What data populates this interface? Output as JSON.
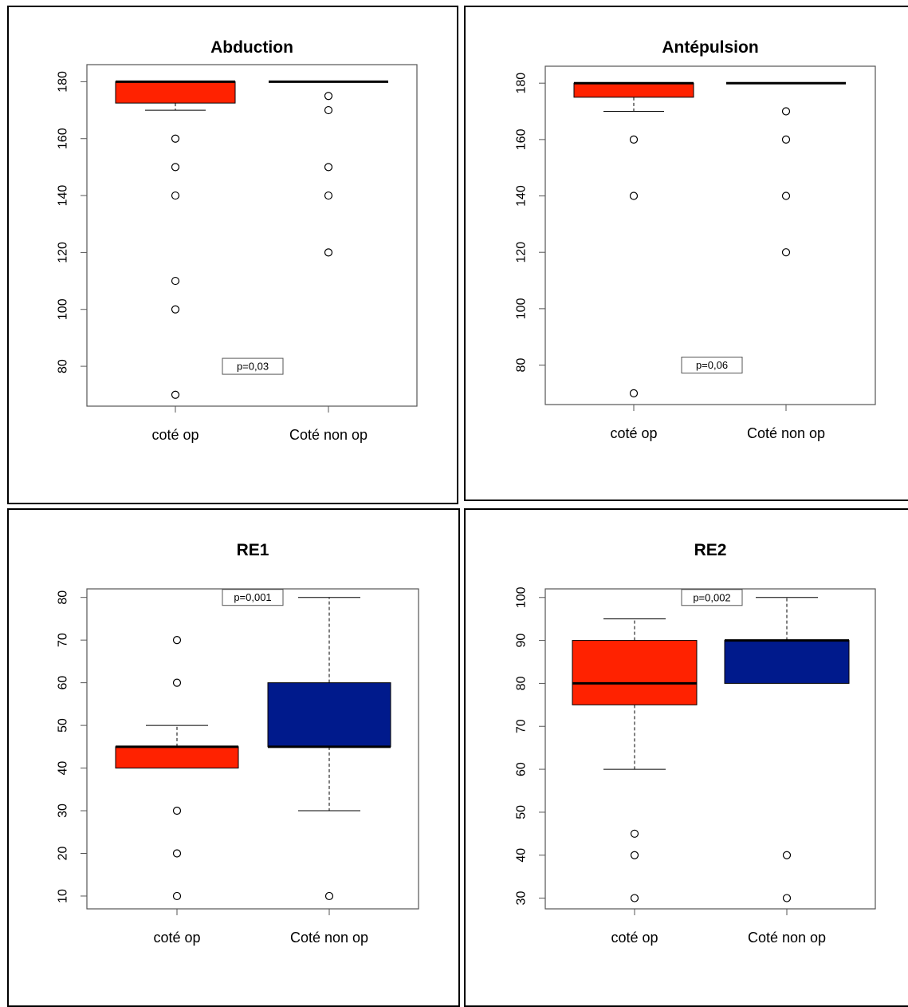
{
  "colors": {
    "op_fill": "#ff2200",
    "non_op_fill": "#001a8c",
    "border": "#000000",
    "axis": "#555555"
  },
  "chart_data": [
    {
      "type": "box",
      "title": "Abduction",
      "categories": [
        "coté op",
        "Coté non op"
      ],
      "ylim": [
        66,
        186
      ],
      "yticks": [
        80,
        100,
        120,
        140,
        160,
        180
      ],
      "series": [
        {
          "category": "coté op",
          "fill": "#ff2200",
          "q1": 172.5,
          "median": 180,
          "q3": 180,
          "whisker_low": 170,
          "whisker_high": 180,
          "outliers": [
            160,
            150,
            140,
            110,
            100,
            70
          ]
        },
        {
          "category": "Coté non op",
          "fill": "none",
          "q1": 180,
          "median": 180,
          "q3": 180,
          "whisker_low": 180,
          "whisker_high": 180,
          "outliers": [
            175,
            170,
            150,
            140,
            120
          ]
        }
      ],
      "annotation": "p=0,03",
      "annotation_y": 80
    },
    {
      "type": "box",
      "title": "Antépulsion",
      "categories": [
        "coté op",
        "Coté non op"
      ],
      "ylim": [
        66,
        186
      ],
      "yticks": [
        80,
        100,
        120,
        140,
        160,
        180
      ],
      "series": [
        {
          "category": "coté op",
          "fill": "#ff2200",
          "q1": 175,
          "median": 180,
          "q3": 180,
          "whisker_low": 170,
          "whisker_high": 180,
          "outliers": [
            160,
            140,
            70
          ]
        },
        {
          "category": "Coté non op",
          "fill": "none",
          "q1": 180,
          "median": 180,
          "q3": 180,
          "whisker_low": 180,
          "whisker_high": 180,
          "outliers": [
            170,
            160,
            140,
            120
          ]
        }
      ],
      "annotation": "p=0,06",
      "annotation_y": 80
    },
    {
      "type": "box",
      "title": "RE1",
      "categories": [
        "coté op",
        "Coté non op"
      ],
      "ylim": [
        7,
        82
      ],
      "yticks": [
        10,
        20,
        30,
        40,
        50,
        60,
        70,
        80
      ],
      "series": [
        {
          "category": "coté op",
          "fill": "#ff2200",
          "q1": 40,
          "median": 45,
          "q3": 45,
          "whisker_low": 40,
          "whisker_high": 50,
          "outliers": [
            70,
            60,
            30,
            20,
            10
          ]
        },
        {
          "category": "Coté non op",
          "fill": "#001a8c",
          "q1": 45,
          "median": 45,
          "q3": 60,
          "whisker_low": 30,
          "whisker_high": 80,
          "outliers": [
            10
          ]
        }
      ],
      "annotation": "p=0,001",
      "annotation_y": 80
    },
    {
      "type": "box",
      "title": "RE2",
      "categories": [
        "coté op",
        "Coté non op"
      ],
      "ylim": [
        27.5,
        102
      ],
      "yticks": [
        30,
        40,
        50,
        60,
        70,
        80,
        90,
        100
      ],
      "series": [
        {
          "category": "coté op",
          "fill": "#ff2200",
          "q1": 75,
          "median": 80,
          "q3": 90,
          "whisker_low": 60,
          "whisker_high": 95,
          "outliers": [
            45,
            40,
            30
          ]
        },
        {
          "category": "Coté non op",
          "fill": "#001a8c",
          "q1": 80,
          "median": 90,
          "q3": 90,
          "whisker_low": 80,
          "whisker_high": 100,
          "outliers": [
            40,
            30
          ]
        }
      ],
      "annotation": "p=0,002",
      "annotation_y": 100
    }
  ]
}
